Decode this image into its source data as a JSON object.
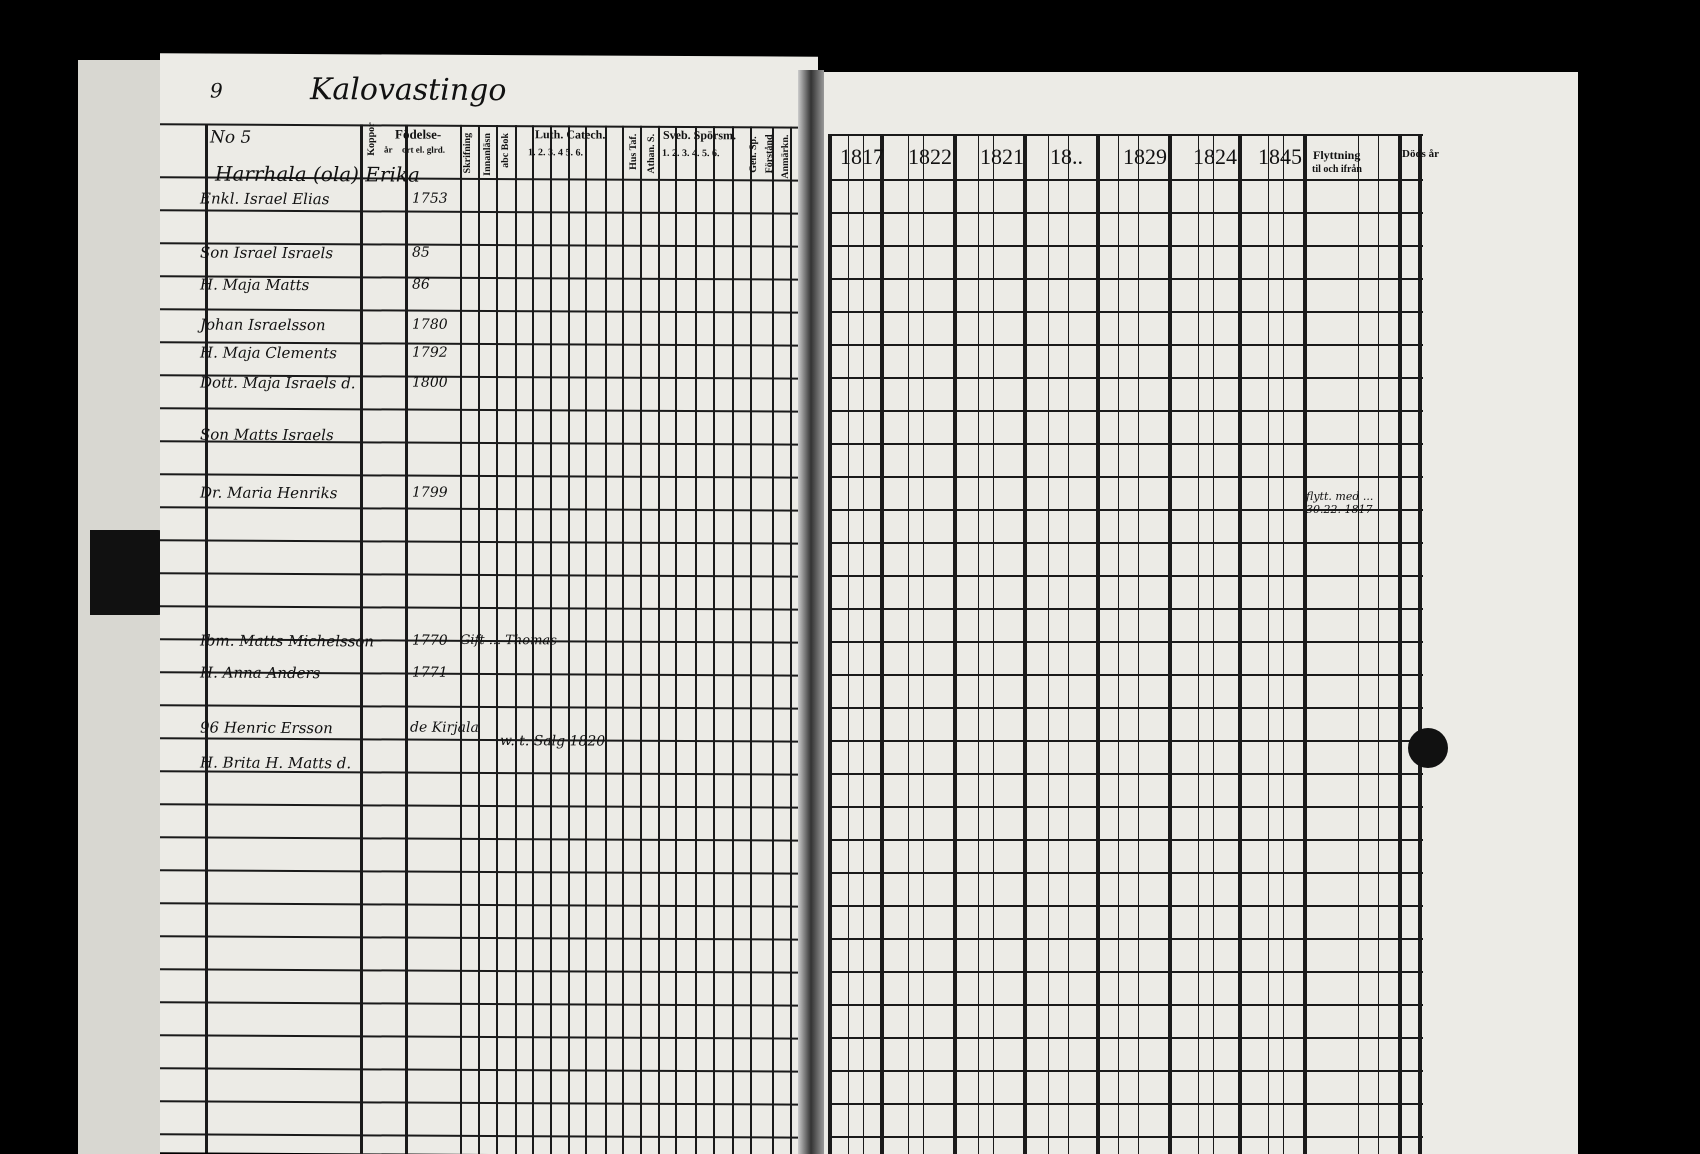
{
  "left_page": {
    "page_number": "9",
    "village": "Kalovastingo",
    "household_no": "No 5",
    "farm": "Harrhala (ola) Erika",
    "headers": {
      "fodelse": "Födelse-",
      "ar": "år",
      "ort": "ort el. glrd.",
      "kopp": "Koppor",
      "skrifning": "Skrifning",
      "innanlasn": "Innanläsn",
      "abc_bok": "abc Bok",
      "luth_catech": "Luth. Catech.",
      "luth_cols": "1. 2. 3. 4 5. 6.",
      "hus_taf": "Hus Taf.",
      "athan": "Athan. S.",
      "sveb": "Sveb. Spörsm.",
      "sveb_cols": "1. 2. 3. 4. 5. 6.",
      "gen_sp": "Gen. Sp.",
      "forstand": "Förstånd",
      "anmark": "Anmärkn."
    },
    "rows": [
      {
        "name": "Enkl. Israel Elias",
        "year": "1753"
      },
      {
        "name": "Son Israel Israels",
        "year": "85"
      },
      {
        "name": "H. Maja Matts",
        "year": "86"
      },
      {
        "name": "Johan Israelsson",
        "year": "1780"
      },
      {
        "name": "H. Maja Clements",
        "year": "1792"
      },
      {
        "name": "Dott. Maja Israels d.",
        "year": "1800"
      },
      {
        "name": "Son Matts Israels",
        "year": ""
      },
      {
        "name": "Dr. Maria Henriks",
        "year": "1799"
      },
      {
        "name": "Ibm. Matts Michelsson",
        "year": "1770"
      },
      {
        "name": "H. Anna Anders",
        "year": "1771"
      },
      {
        "name": "96 Henric Ersson",
        "year": ""
      },
      {
        "name": "H. Brita H. Matts d.",
        "year": ""
      }
    ],
    "note_matts": "Gift ... Thomas",
    "note_henric_place": "de Kirjala",
    "note_henric": "w. t. Salg 1820"
  },
  "right_page": {
    "years": [
      "1817",
      "1822",
      "1821",
      "18..",
      "1829",
      "1824",
      "1845"
    ],
    "flyttning": "Flyttning",
    "flyttning_sub": "til och ifrån",
    "dods": "Döds år",
    "move_note": "flytt. med ... 30.22. 1817"
  }
}
